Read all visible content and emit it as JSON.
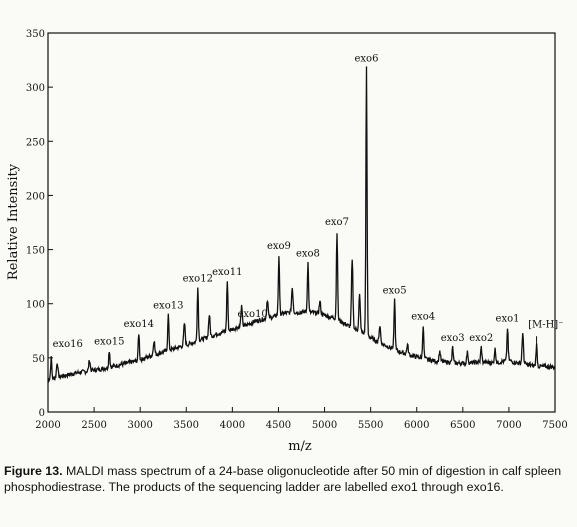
{
  "chart_data": {
    "type": "line",
    "xlabel": "m/z",
    "ylabel": "Relative Intensity",
    "xlim": [
      2000,
      7500
    ],
    "ylim": [
      0,
      350
    ],
    "x_ticks": [
      2000,
      2500,
      3000,
      3500,
      4000,
      4500,
      5000,
      5500,
      6000,
      6500,
      7000,
      7500
    ],
    "y_ticks": [
      0,
      50,
      100,
      150,
      200,
      250,
      300,
      350
    ],
    "grid": false,
    "series": [
      {
        "x": [
          2000,
          2050,
          2150,
          2300,
          2450,
          2600,
          2700,
          2750,
          2900,
          3000,
          3050,
          3200,
          3300,
          3350,
          3500,
          3580,
          3620,
          3700,
          3800,
          3900,
          3950,
          4050,
          4150,
          4200,
          4250,
          4350,
          4450,
          4500,
          4550,
          4650,
          4750,
          4800,
          4850,
          4950,
          5050,
          5100,
          5150,
          5250,
          5300,
          5350,
          5420,
          5450,
          5480,
          5550,
          5700,
          5750,
          5800,
          5950,
          6050,
          6100,
          6200,
          6350,
          6450,
          6550,
          6650,
          6750,
          6850,
          6950,
          7000,
          7050,
          7200,
          7250,
          7350,
          7450,
          7500
        ],
        "y": [
          30,
          31,
          33,
          36,
          38,
          40,
          42,
          43,
          46,
          48,
          50,
          54,
          57,
          58,
          62,
          64,
          66,
          68,
          71,
          74,
          75,
          78,
          80,
          82,
          84,
          86,
          88,
          90,
          91,
          92,
          92,
          93,
          92,
          91,
          88,
          87,
          85,
          80,
          78,
          76,
          73,
          72,
          70,
          66,
          60,
          58,
          56,
          52,
          50,
          49,
          47,
          46,
          45,
          45,
          46,
          46,
          45,
          47,
          48,
          46,
          44,
          43,
          42,
          42,
          41
        ]
      }
    ],
    "peaks": [
      {
        "label": "exo16",
        "x": 2035,
        "y": 50
      },
      {
        "label": "exo15",
        "x": 2665,
        "y": 57
      },
      {
        "label": "exo14",
        "x": 2985,
        "y": 73
      },
      {
        "label": "exo13",
        "x": 3305,
        "y": 90
      },
      {
        "label": "exo12",
        "x": 3625,
        "y": 115
      },
      {
        "label": "exo11",
        "x": 3945,
        "y": 121
      },
      {
        "label": "exo10",
        "x": 4220,
        "y": 82
      },
      {
        "label": "exo9",
        "x": 4505,
        "y": 145
      },
      {
        "label": "exo8",
        "x": 4820,
        "y": 138
      },
      {
        "label": "exo7",
        "x": 5135,
        "y": 167
      },
      {
        "label": "exo6",
        "x": 5455,
        "y": 318
      },
      {
        "label": "exo5",
        "x": 5760,
        "y": 104
      },
      {
        "label": "exo4",
        "x": 6070,
        "y": 80
      },
      {
        "label": "exo3",
        "x": 6390,
        "y": 60
      },
      {
        "label": "exo2",
        "x": 6700,
        "y": 60
      },
      {
        "label": "exo1",
        "x": 6985,
        "y": 78
      },
      {
        "label": "[M-H]⁻",
        "x": 7300,
        "y": 62
      }
    ],
    "extra_peaks": [
      {
        "x": 2100,
        "y": 46
      },
      {
        "x": 2450,
        "y": 48
      },
      {
        "x": 3150,
        "y": 66
      },
      {
        "x": 3480,
        "y": 82
      },
      {
        "x": 3750,
        "y": 90
      },
      {
        "x": 4100,
        "y": 97
      },
      {
        "x": 4380,
        "y": 104
      },
      {
        "x": 4650,
        "y": 115
      },
      {
        "x": 4950,
        "y": 102
      },
      {
        "x": 5300,
        "y": 140
      },
      {
        "x": 5380,
        "y": 108
      },
      {
        "x": 5600,
        "y": 80
      },
      {
        "x": 5900,
        "y": 62
      },
      {
        "x": 6250,
        "y": 56
      },
      {
        "x": 6550,
        "y": 55
      },
      {
        "x": 6850,
        "y": 58
      },
      {
        "x": 7150,
        "y": 72
      }
    ]
  },
  "caption": {
    "figure_label": "Figure 13.",
    "text": "MALDI mass spectrum of a 24-base oligonucleotide after 50 min of digestion in calf spleen phosphodiestrase. The products of the sequencing ladder are labelled exo1 through exo16."
  }
}
